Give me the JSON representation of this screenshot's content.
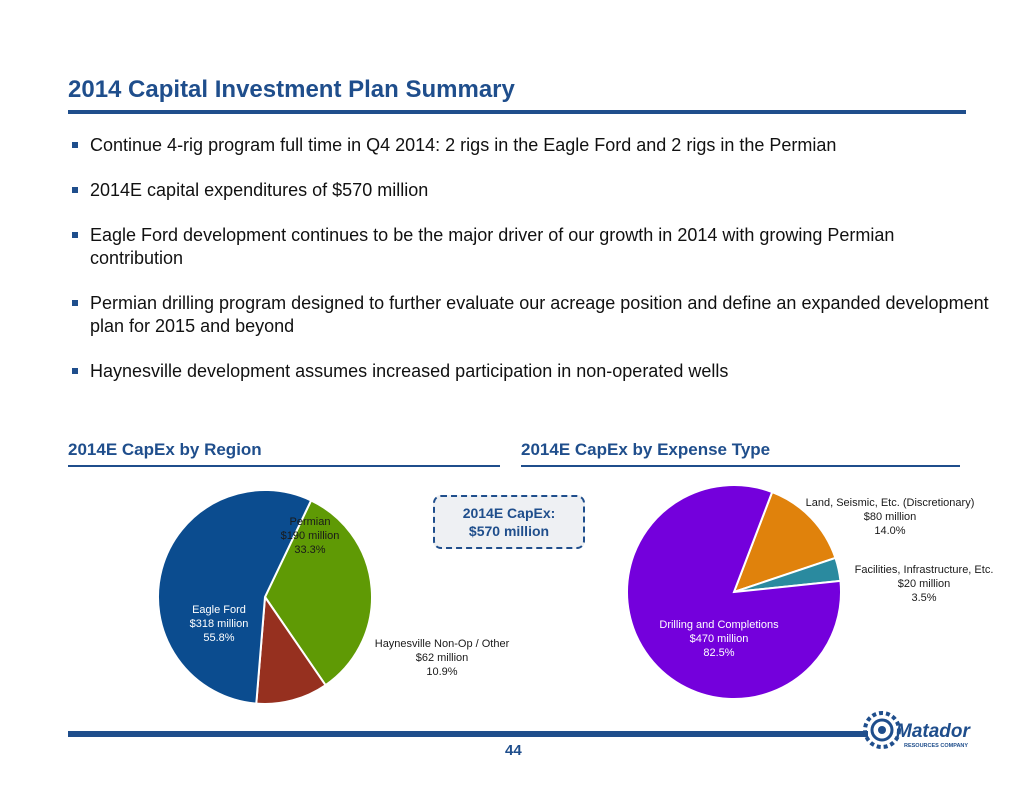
{
  "title": "2014 Capital Investment Plan Summary",
  "bullets": [
    "Continue 4-rig program full time in Q4 2014: 2 rigs in the Eagle Ford and 2 rigs in the Permian",
    "2014E capital expenditures of $570 million",
    "Eagle Ford development continues to be the major driver of our growth in 2014 with growing Permian contribution",
    "Permian drilling program designed to further evaluate our acreage position and define an expanded development plan for 2015 and beyond",
    "Haynesville development assumes increased participation in non-operated wells"
  ],
  "callout": {
    "line1": "2014E CapEx:",
    "line2": "$570 million"
  },
  "page_number": "44",
  "logo": {
    "name": "Matador",
    "tagline": "RESOURCES COMPANY",
    "color": "#1f4e8c"
  },
  "chart_data": [
    {
      "type": "pie",
      "title": "2014E CapEx by Region",
      "categories": [
        "Eagle Ford",
        "Permian",
        "Haynesville Non-Op / Other"
      ],
      "values": [
        318,
        190,
        62
      ],
      "value_labels": [
        "$318 million",
        "$190 million",
        "$62 million"
      ],
      "percent_labels": [
        "55.8%",
        "33.3%",
        "10.9%"
      ],
      "percents": [
        55.8,
        33.3,
        10.9
      ],
      "colors": [
        "#0b4c8f",
        "#5f9a05",
        "#96301f"
      ],
      "label_colors": [
        "#ffffff",
        "#1a1a1a",
        "#1a1a1a"
      ]
    },
    {
      "type": "pie",
      "title": "2014E CapEx by Expense Type",
      "categories": [
        "Drilling and Completions",
        "Land, Seismic, Etc. (Discretionary)",
        "Facilities, Infrastructure, Etc."
      ],
      "values": [
        470,
        80,
        20
      ],
      "value_labels": [
        "$470 million",
        "$80 million",
        "$20 million"
      ],
      "percent_labels": [
        "82.5%",
        "14.0%",
        "3.5%"
      ],
      "percents": [
        82.5,
        14.0,
        3.5
      ],
      "colors": [
        "#7400dc",
        "#e0820c",
        "#2a8a9f"
      ],
      "label_colors": [
        "#ffffff",
        "#1a1a1a",
        "#1a1a1a"
      ]
    }
  ]
}
